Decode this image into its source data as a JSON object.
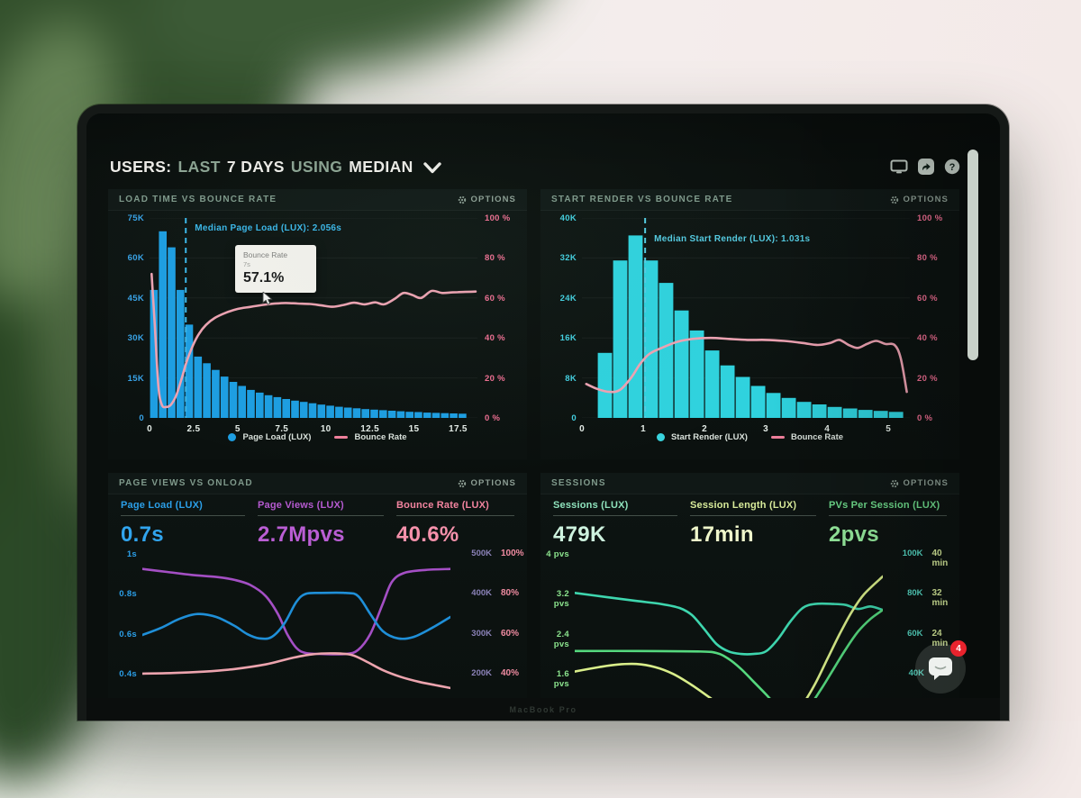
{
  "ui": {
    "options_label": "OPTIONS",
    "device_label": "MacBook Pro"
  },
  "header": {
    "title_parts": [
      {
        "text": "USERS:",
        "strong": true
      },
      {
        "text": "LAST",
        "strong": false
      },
      {
        "text": "7 DAYS",
        "strong": true
      },
      {
        "text": "USING",
        "strong": false
      },
      {
        "text": "MEDIAN",
        "strong": true
      }
    ],
    "icons": [
      "display-icon",
      "share-icon",
      "help-icon"
    ]
  },
  "chat": {
    "badge": "4"
  },
  "chart_data": [
    {
      "type": "bar+line",
      "title": "LOAD TIME VS BOUNCE RATE",
      "bar_x0": 0,
      "x_step": 0.5,
      "x_max": 18.6,
      "x_ticks": [
        {
          "label": "0",
          "v": 0
        },
        {
          "label": "2.5",
          "v": 2.5
        },
        {
          "label": "5",
          "v": 5
        },
        {
          "label": "7.5",
          "v": 7.5
        },
        {
          "label": "10",
          "v": 10
        },
        {
          "label": "12.5",
          "v": 12.5
        },
        {
          "label": "15",
          "v": 15
        },
        {
          "label": "17.5",
          "v": 17.5
        }
      ],
      "y_left": {
        "max": 75,
        "ticks": [
          "75K",
          "60K",
          "45K",
          "30K",
          "15K",
          "0"
        ],
        "color": "#38a3e8"
      },
      "y_right": {
        "max": 100,
        "ticks": [
          "100 %",
          "80 %",
          "60 %",
          "40 %",
          "20 %",
          "0 %"
        ],
        "color": "#ef6e92"
      },
      "bars": {
        "name": "Page Load (LUX)",
        "unit": "K",
        "color": "#1d9ee2",
        "values": [
          48,
          70,
          64,
          48,
          35,
          23,
          20.5,
          18,
          15.5,
          13.5,
          12,
          10.5,
          9.5,
          8.5,
          7.8,
          7.1,
          6.5,
          6,
          5.5,
          5,
          4.6,
          4.2,
          3.9,
          3.6,
          3.3,
          3.1,
          2.9,
          2.7,
          2.5,
          2.3,
          2.2,
          2.0,
          1.9,
          1.8,
          1.7,
          1.6
        ]
      },
      "line": {
        "name": "Bounce Rate",
        "unit": "%",
        "color": "#eda2b2",
        "points": [
          [
            0.12,
            72
          ],
          [
            0.3,
            46
          ],
          [
            0.5,
            16
          ],
          [
            0.7,
            6.5
          ],
          [
            0.95,
            5.5
          ],
          [
            1.2,
            6.5
          ],
          [
            1.5,
            11
          ],
          [
            1.8,
            19
          ],
          [
            2.1,
            28
          ],
          [
            2.45,
            36
          ],
          [
            2.8,
            42
          ],
          [
            3.2,
            46.5
          ],
          [
            3.7,
            50
          ],
          [
            4.3,
            52.5
          ],
          [
            5,
            54.5
          ],
          [
            5.7,
            55.5
          ],
          [
            6.4,
            56.5
          ],
          [
            7,
            57.1
          ],
          [
            7.7,
            57.5
          ],
          [
            8.4,
            57.2
          ],
          [
            9.1,
            57
          ],
          [
            9.8,
            56.2
          ],
          [
            10.4,
            55.6
          ],
          [
            11,
            56.5
          ],
          [
            11.6,
            57.6
          ],
          [
            12.2,
            56.8
          ],
          [
            12.8,
            57.8
          ],
          [
            13.3,
            56.8
          ],
          [
            13.9,
            59.5
          ],
          [
            14.4,
            62.5
          ],
          [
            14.9,
            61.5
          ],
          [
            15.4,
            60
          ],
          [
            16,
            63.5
          ],
          [
            16.6,
            62.5
          ],
          [
            17.2,
            62.8
          ],
          [
            17.9,
            63
          ],
          [
            18.5,
            63.2
          ]
        ]
      },
      "median": {
        "x": 2.056,
        "label": "Median Page Load (LUX): 2.056s",
        "color": "#3ab7ea",
        "label_dy": 6
      },
      "tooltip": {
        "title": "Bounce Rate",
        "subtitle": "7s",
        "value": "57.1%"
      },
      "legend": [
        {
          "marker": "dot",
          "color": "#1d9ee2",
          "label": "Page Load (LUX)"
        },
        {
          "marker": "line",
          "color": "#ef7f9b",
          "label": "Bounce Rate"
        }
      ]
    },
    {
      "type": "bar+line",
      "title": "START RENDER VS BOUNCE RATE",
      "bar_x0": 0.25,
      "x_step": 0.25,
      "x_max": 5.35,
      "x_ticks": [
        {
          "label": "0",
          "v": 0
        },
        {
          "label": "1",
          "v": 1
        },
        {
          "label": "2",
          "v": 2
        },
        {
          "label": "3",
          "v": 3
        },
        {
          "label": "4",
          "v": 4
        },
        {
          "label": "5",
          "v": 5
        }
      ],
      "y_left": {
        "max": 40,
        "ticks": [
          "40K",
          "32K",
          "24K",
          "16K",
          "8K",
          "0"
        ],
        "color": "#43cfe0"
      },
      "y_right": {
        "max": 100,
        "ticks": [
          "100 %",
          "80 %",
          "60 %",
          "40 %",
          "20 %",
          "0 %"
        ],
        "color": "#ef6e92"
      },
      "bars": {
        "name": "Start Render (LUX)",
        "unit": "K",
        "color": "#2fd2de",
        "values": [
          13,
          31.5,
          36.5,
          31.5,
          27,
          21.5,
          17.5,
          13.5,
          10.5,
          8.2,
          6.4,
          5,
          4,
          3.2,
          2.7,
          2.2,
          1.9,
          1.6,
          1.4,
          1.2
        ]
      },
      "line": {
        "name": "Bounce Rate",
        "unit": "%",
        "color": "#eda2b2",
        "points": [
          [
            0.07,
            17
          ],
          [
            0.25,
            14.5
          ],
          [
            0.45,
            13
          ],
          [
            0.62,
            14
          ],
          [
            0.8,
            20
          ],
          [
            0.95,
            27
          ],
          [
            1.1,
            32
          ],
          [
            1.3,
            35
          ],
          [
            1.55,
            38
          ],
          [
            1.8,
            39.5
          ],
          [
            2.1,
            40
          ],
          [
            2.4,
            39.5
          ],
          [
            2.7,
            39
          ],
          [
            3.0,
            39
          ],
          [
            3.3,
            38.5
          ],
          [
            3.6,
            37.5
          ],
          [
            3.85,
            36.5
          ],
          [
            4.05,
            37.5
          ],
          [
            4.2,
            39
          ],
          [
            4.35,
            36.5
          ],
          [
            4.5,
            35
          ],
          [
            4.65,
            37
          ],
          [
            4.8,
            38.5
          ],
          [
            4.95,
            37
          ],
          [
            5.1,
            36.5
          ],
          [
            5.2,
            30
          ],
          [
            5.3,
            13
          ]
        ]
      },
      "median": {
        "x": 1.031,
        "label": "Median Start Render (LUX): 1.031s",
        "color": "#54cbe2",
        "label_dy": 18
      },
      "legend": [
        {
          "marker": "dot",
          "color": "#39d4de",
          "label": "Start Render (LUX)"
        },
        {
          "marker": "line",
          "color": "#ef7f9b",
          "label": "Bounce Rate"
        }
      ]
    },
    {
      "type": "lines",
      "title": "PAGE VIEWS VS ONLOAD",
      "metrics": [
        {
          "label": "Page Load (LUX)",
          "value": "0.7s",
          "color": "#2b9fe8",
          "value_color": "#31a5ee"
        },
        {
          "label": "Page Views (LUX)",
          "value": "2.7Mpvs",
          "color": "#b55ad0",
          "value_color": "#ba5ed4"
        },
        {
          "label": "Bounce Rate (LUX)",
          "value": "40.6%",
          "color": "#f2849f",
          "value_color": "#f591ab"
        }
      ],
      "y_min": 0.28,
      "y_max": 1.0,
      "left_color": "#2b9fe8",
      "left_ticks": [
        {
          "label": "1s",
          "v": 1.0
        },
        {
          "label": "0.8s",
          "v": 0.8
        },
        {
          "label": "0.6s",
          "v": 0.6
        },
        {
          "label": "0.4s",
          "v": 0.4
        }
      ],
      "right_colors": [
        "#8b82b8",
        "#ef8ba1"
      ],
      "right_ticks": [
        {
          "a": "500K",
          "b": "100%",
          "v": 1.0
        },
        {
          "a": "400K",
          "b": "80%",
          "v": 0.8
        },
        {
          "a": "300K",
          "b": "60%",
          "v": 0.6
        },
        {
          "a": "200K",
          "b": "40%",
          "v": 0.4
        }
      ],
      "series": [
        {
          "name": "Page Views (LUX)",
          "color": "#a44fc4",
          "points": [
            [
              0,
              0.925
            ],
            [
              8,
              0.91
            ],
            [
              16,
              0.895
            ],
            [
              24,
              0.885
            ],
            [
              30,
              0.87
            ],
            [
              35,
              0.845
            ],
            [
              40,
              0.79
            ],
            [
              44,
              0.7
            ],
            [
              47,
              0.6
            ],
            [
              50,
              0.53
            ],
            [
              53,
              0.505
            ],
            [
              58,
              0.5
            ],
            [
              66,
              0.5
            ],
            [
              70,
              0.52
            ],
            [
              74,
              0.6
            ],
            [
              78,
              0.75
            ],
            [
              81,
              0.86
            ],
            [
              85,
              0.905
            ],
            [
              92,
              0.92
            ],
            [
              100,
              0.925
            ]
          ]
        },
        {
          "name": "Page Load (LUX)",
          "color": "#1f8fd8",
          "points": [
            [
              0,
              0.595
            ],
            [
              6,
              0.63
            ],
            [
              12,
              0.675
            ],
            [
              18,
              0.7
            ],
            [
              24,
              0.685
            ],
            [
              30,
              0.64
            ],
            [
              34,
              0.6
            ],
            [
              38,
              0.578
            ],
            [
              42,
              0.585
            ],
            [
              46,
              0.65
            ],
            [
              50,
              0.76
            ],
            [
              53,
              0.8
            ],
            [
              58,
              0.805
            ],
            [
              66,
              0.805
            ],
            [
              70,
              0.79
            ],
            [
              74,
              0.7
            ],
            [
              78,
              0.615
            ],
            [
              83,
              0.578
            ],
            [
              88,
              0.585
            ],
            [
              94,
              0.63
            ],
            [
              100,
              0.685
            ]
          ]
        },
        {
          "name": "Bounce Rate (LUX)",
          "color": "#eca4ae",
          "points": [
            [
              0,
              0.402
            ],
            [
              10,
              0.405
            ],
            [
              20,
              0.412
            ],
            [
              30,
              0.425
            ],
            [
              40,
              0.448
            ],
            [
              48,
              0.478
            ],
            [
              55,
              0.498
            ],
            [
              62,
              0.503
            ],
            [
              68,
              0.495
            ],
            [
              73,
              0.46
            ],
            [
              78,
              0.42
            ],
            [
              84,
              0.385
            ],
            [
              90,
              0.36
            ],
            [
              95,
              0.345
            ],
            [
              100,
              0.33
            ]
          ]
        }
      ]
    },
    {
      "type": "lines",
      "title": "SESSIONS",
      "metrics": [
        {
          "label": "Sessions (LUX)",
          "value": "479K",
          "color": "#8fe3bd",
          "value_color": "#cdf2de"
        },
        {
          "label": "Session Length (LUX)",
          "value": "17min",
          "color": "#d9ec9b",
          "value_color": "#eff7cb"
        },
        {
          "label": "PVs Per Session (LUX)",
          "value": "2pvs",
          "color": "#6fdc8c",
          "value_color": "#97ed9f"
        }
      ],
      "y_min": 1.12,
      "y_max": 4.0,
      "left_color": "#8ce48e",
      "left_ticks": [
        {
          "label": "4 pvs",
          "v": 4.0
        },
        {
          "label": "3.2 pvs",
          "v": 3.2
        },
        {
          "label": "2.4 pvs",
          "v": 2.4
        },
        {
          "label": "1.6 pvs",
          "v": 1.6
        }
      ],
      "right_colors": [
        "#55d8c4",
        "#d7ec9b"
      ],
      "right_ticks": [
        {
          "a": "100K",
          "b": "40 min",
          "v": 4.0
        },
        {
          "a": "80K",
          "b": "32 min",
          "v": 3.2
        },
        {
          "a": "60K",
          "b": "24 min",
          "v": 2.4
        },
        {
          "a": "40K",
          "b": "",
          "v": 1.6
        }
      ],
      "series": [
        {
          "name": "Sessions (LUX)",
          "color": "#3ed6ae",
          "points": [
            [
              0,
              3.22
            ],
            [
              10,
              3.14
            ],
            [
              20,
              3.06
            ],
            [
              28,
              3.0
            ],
            [
              34,
              2.92
            ],
            [
              38,
              2.78
            ],
            [
              42,
              2.5
            ],
            [
              46,
              2.2
            ],
            [
              50,
              2.05
            ],
            [
              54,
              2.0
            ],
            [
              58,
              2.0
            ],
            [
              62,
              2.05
            ],
            [
              66,
              2.3
            ],
            [
              70,
              2.65
            ],
            [
              74,
              2.92
            ],
            [
              78,
              3.0
            ],
            [
              84,
              3.0
            ],
            [
              88,
              2.98
            ],
            [
              92,
              2.9
            ],
            [
              96,
              2.95
            ],
            [
              100,
              2.88
            ]
          ]
        },
        {
          "name": "PVs Per Session (LUX)",
          "color": "#55d87e",
          "points": [
            [
              0,
              2.06
            ],
            [
              20,
              2.06
            ],
            [
              40,
              2.05
            ],
            [
              46,
              2.02
            ],
            [
              50,
              1.9
            ],
            [
              54,
              1.7
            ],
            [
              58,
              1.45
            ],
            [
              62,
              1.2
            ],
            [
              65,
              1.0
            ],
            [
              68,
              0.85
            ],
            [
              72,
              0.8
            ],
            [
              76,
              0.95
            ],
            [
              80,
              1.3
            ],
            [
              84,
              1.7
            ],
            [
              88,
              2.1
            ],
            [
              92,
              2.45
            ],
            [
              96,
              2.7
            ],
            [
              100,
              2.88
            ]
          ]
        },
        {
          "name": "Session Length (LUX)",
          "color": "#d9ee8a",
          "points": [
            [
              0,
              1.65
            ],
            [
              8,
              1.74
            ],
            [
              14,
              1.79
            ],
            [
              20,
              1.8
            ],
            [
              26,
              1.74
            ],
            [
              32,
              1.6
            ],
            [
              38,
              1.38
            ],
            [
              44,
              1.12
            ],
            [
              48,
              0.95
            ],
            [
              52,
              0.85
            ],
            [
              56,
              0.9
            ],
            [
              60,
              0.8
            ],
            [
              64,
              0.75
            ],
            [
              70,
              0.8
            ],
            [
              74,
              1.0
            ],
            [
              78,
              1.4
            ],
            [
              82,
              1.9
            ],
            [
              86,
              2.4
            ],
            [
              90,
              2.85
            ],
            [
              94,
              3.2
            ],
            [
              100,
              3.55
            ]
          ]
        }
      ]
    }
  ]
}
